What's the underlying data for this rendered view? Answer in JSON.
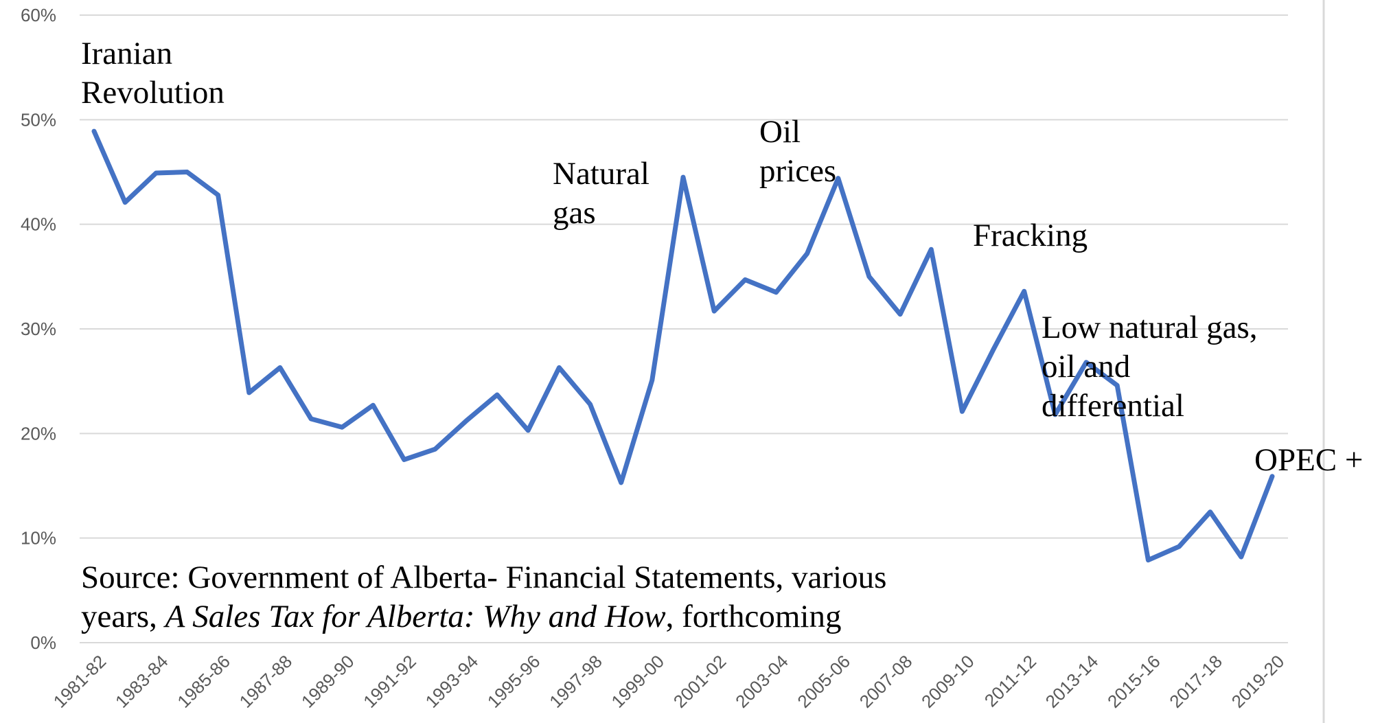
{
  "chart_data": {
    "type": "line",
    "categories": [
      "1981-82",
      null,
      "1983-84",
      null,
      "1985-86",
      null,
      "1987-88",
      null,
      "1989-90",
      null,
      "1991-92",
      null,
      "1993-94",
      null,
      "1995-96",
      null,
      "1997-98",
      null,
      "1999-00",
      null,
      "2001-02",
      null,
      "2003-04",
      null,
      "2005-06",
      null,
      "2007-08",
      null,
      "2009-10",
      null,
      "2011-12",
      null,
      "2013-14",
      null,
      "2015-16",
      null,
      "2017-18",
      null,
      "2019-20"
    ],
    "series": [
      {
        "color": "#4472c4",
        "values": [
          48.9,
          42.1,
          44.9,
          45.0,
          42.8,
          23.9,
          26.3,
          21.4,
          20.6,
          22.7,
          17.5,
          18.5,
          21.2,
          23.7,
          20.3,
          26.3,
          22.8,
          15.3,
          25.1,
          44.5,
          31.7,
          34.7,
          33.5,
          37.2,
          44.4,
          35.0,
          31.4,
          37.6,
          22.1,
          28.0,
          33.6,
          21.8,
          26.8,
          24.6,
          7.9,
          9.2,
          12.5,
          8.2,
          15.9
        ]
      }
    ],
    "ylim": [
      0,
      60
    ],
    "yticks": [
      {
        "value": 0,
        "label": "0%"
      },
      {
        "value": 10,
        "label": "10%"
      },
      {
        "value": 20,
        "label": "20%"
      },
      {
        "value": 30,
        "label": "30%"
      },
      {
        "value": 40,
        "label": "40%"
      },
      {
        "value": 50,
        "label": "50%"
      },
      {
        "value": 60,
        "label": "60%"
      }
    ],
    "grid": true,
    "annotations": [
      {
        "lines": [
          "Iranian",
          "Revolution"
        ]
      },
      {
        "lines": [
          "Natural",
          "gas"
        ]
      },
      {
        "lines": [
          "Oil",
          "prices"
        ]
      },
      {
        "lines": [
          "Fracking"
        ]
      },
      {
        "lines": [
          "Low natural gas,",
          "oil and",
          "differential"
        ]
      },
      {
        "lines": [
          "OPEC +"
        ]
      }
    ],
    "source": [
      "Source: Government of Alberta- Financial Statements, various",
      "years, ",
      "A Sales Tax for Alberta: Why and How",
      ", forthcoming"
    ]
  }
}
